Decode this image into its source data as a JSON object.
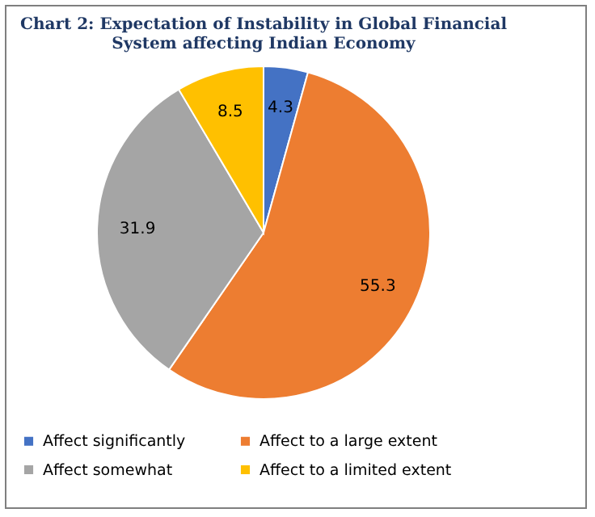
{
  "chart_data": {
    "type": "pie",
    "title": "Chart 2: Expectation of Instability in Global Financial System affecting Indian Economy",
    "categories": [
      "Affect significantly",
      "Affect to a large extent",
      "Affect somewhat",
      "Affect to a limited extent"
    ],
    "values": [
      4.3,
      55.3,
      31.9,
      8.5
    ],
    "colors": [
      "#4472c4",
      "#ed7d31",
      "#a5a5a5",
      "#ffc000"
    ],
    "data_labels": true,
    "legend": "bottom"
  }
}
